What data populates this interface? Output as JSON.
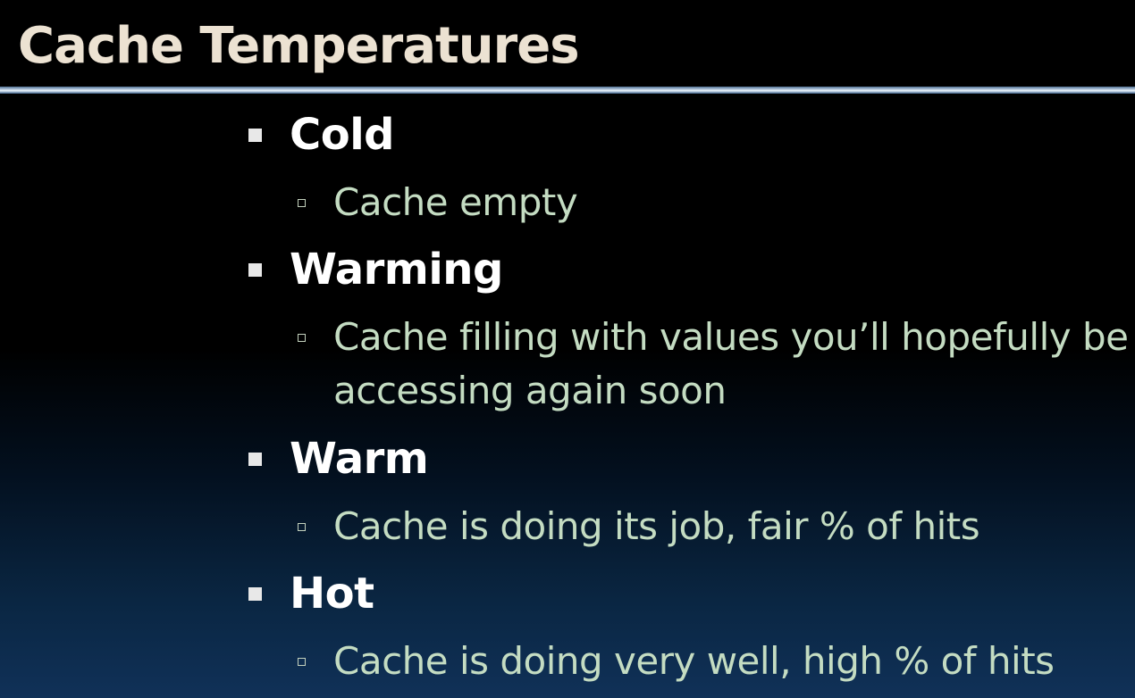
{
  "slide": {
    "title": "Cache Temperatures",
    "items": [
      {
        "label": "Cold",
        "detail": "Cache empty"
      },
      {
        "label": "Warming",
        "detail": "Cache filling with values you’ll hopefully be accessing again soon"
      },
      {
        "label": "Warm",
        "detail": "Cache is doing its job, fair % of hits"
      },
      {
        "label": "Hot",
        "detail": "Cache is doing very well, high % of hits"
      }
    ]
  },
  "colors": {
    "title": "#ece2d2",
    "bullet_text": "#ffffff",
    "sub_text": "#c4dcc2",
    "background_bottom": "#103158"
  }
}
